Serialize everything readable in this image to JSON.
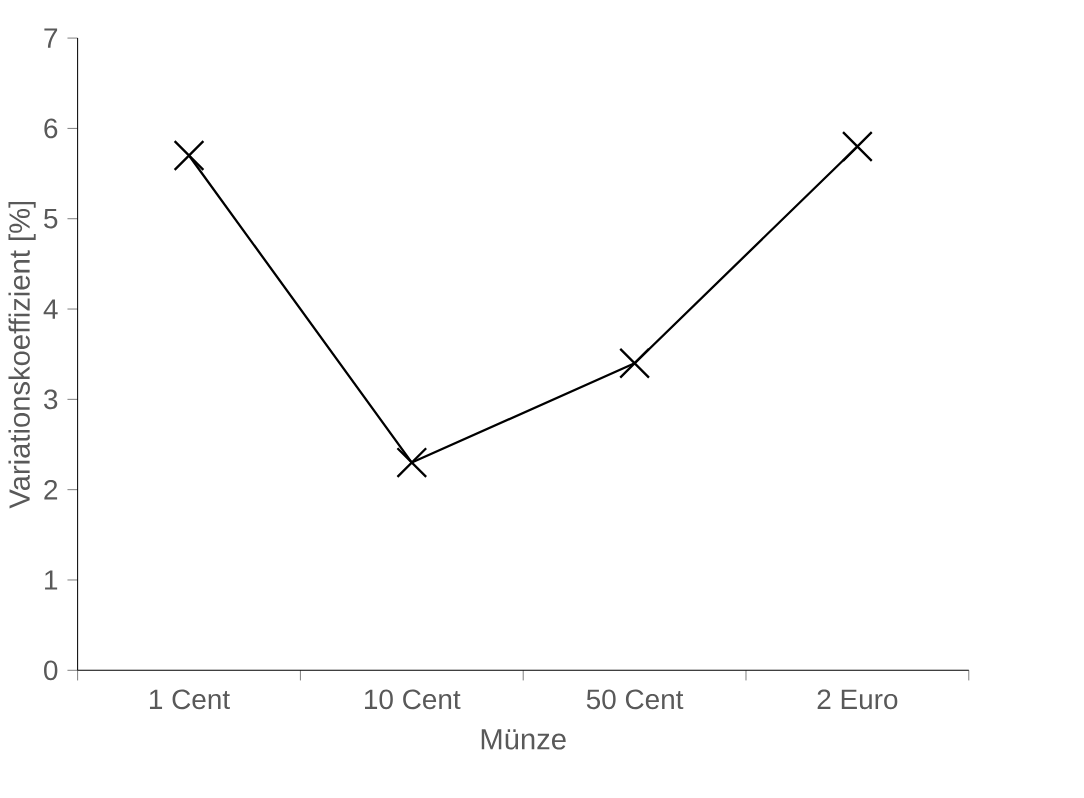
{
  "chart_data": {
    "type": "line",
    "xlabel": "Münze",
    "ylabel": "Variationskoeffizient [%]",
    "categories": [
      "1 Cent",
      "10 Cent",
      "50 Cent",
      "2 Euro"
    ],
    "values": [
      5.7,
      2.3,
      3.4,
      5.8
    ],
    "color": "#000000",
    "ylim": [
      0,
      7
    ],
    "yticks": [
      0,
      1,
      2,
      3,
      4,
      5,
      6,
      7
    ],
    "grid": false,
    "marker": "cross",
    "line_style": "solid"
  }
}
